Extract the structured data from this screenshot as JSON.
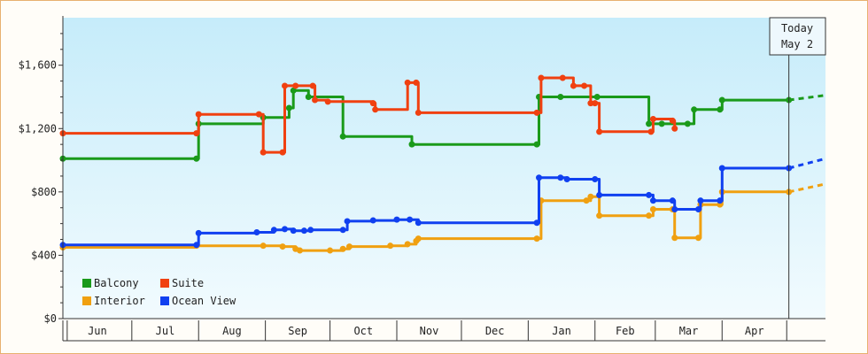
{
  "chart_data": {
    "type": "line",
    "title": "",
    "xlabel": "",
    "ylabel": "",
    "ylim": [
      0,
      1900
    ],
    "y_ticks": [
      0,
      400,
      800,
      1200,
      1600
    ],
    "y_tick_labels": [
      "$0",
      "$400",
      "$800",
      "$1,200",
      "$1,600"
    ],
    "x_range": [
      "2024-05-30",
      "2025-05-19"
    ],
    "months": [
      {
        "label": "Jun",
        "start": "2024-06-01"
      },
      {
        "label": "Jul",
        "start": "2024-07-01"
      },
      {
        "label": "Aug",
        "start": "2024-08-01"
      },
      {
        "label": "Sep",
        "start": "2024-09-01"
      },
      {
        "label": "Oct",
        "start": "2024-10-01"
      },
      {
        "label": "Nov",
        "start": "2024-11-01"
      },
      {
        "label": "Dec",
        "start": "2024-12-01"
      },
      {
        "label": "Jan",
        "start": "2025-01-01"
      },
      {
        "label": "Feb",
        "start": "2025-02-01"
      },
      {
        "label": "Mar",
        "start": "2025-03-01"
      },
      {
        "label": "Apr",
        "start": "2025-04-01"
      }
    ],
    "today": {
      "date": "2025-05-02",
      "line1": "Today",
      "line2": "May 2"
    },
    "grid": false,
    "step": true,
    "legend_position": "bottom-left",
    "series": [
      {
        "name": "Balcony",
        "color": "#1a9a1a",
        "points": [
          [
            "2024-05-30",
            1010
          ],
          [
            "2024-07-31",
            1010
          ],
          [
            "2024-08-01",
            1230
          ],
          [
            "2024-08-31",
            1270
          ],
          [
            "2024-09-12",
            1330
          ],
          [
            "2024-09-14",
            1440
          ],
          [
            "2024-09-21",
            1400
          ],
          [
            "2024-10-07",
            1150
          ],
          [
            "2024-11-08",
            1100
          ],
          [
            "2025-01-05",
            1100
          ],
          [
            "2025-01-06",
            1400
          ],
          [
            "2025-01-16",
            1400
          ],
          [
            "2025-02-02",
            1400
          ],
          [
            "2025-02-26",
            1230
          ],
          [
            "2025-03-04",
            1230
          ],
          [
            "2025-03-16",
            1230
          ],
          [
            "2025-03-19",
            1320
          ],
          [
            "2025-03-31",
            1320
          ],
          [
            "2025-04-01",
            1380
          ],
          [
            "2025-05-02",
            1380
          ]
        ],
        "forecast": [
          [
            "2025-05-02",
            1380
          ],
          [
            "2025-05-19",
            1410
          ]
        ]
      },
      {
        "name": "Suite",
        "color": "#f04010",
        "points": [
          [
            "2024-05-30",
            1170
          ],
          [
            "2024-07-31",
            1170
          ],
          [
            "2024-08-01",
            1290
          ],
          [
            "2024-08-29",
            1290
          ],
          [
            "2024-08-31",
            1050
          ],
          [
            "2024-09-09",
            1050
          ],
          [
            "2024-09-10",
            1470
          ],
          [
            "2024-09-15",
            1470
          ],
          [
            "2024-09-23",
            1470
          ],
          [
            "2024-09-24",
            1380
          ],
          [
            "2024-09-30",
            1370
          ],
          [
            "2024-10-21",
            1360
          ],
          [
            "2024-10-22",
            1320
          ],
          [
            "2024-11-06",
            1490
          ],
          [
            "2024-11-10",
            1490
          ],
          [
            "2024-11-11",
            1300
          ],
          [
            "2025-01-05",
            1300
          ],
          [
            "2025-01-07",
            1520
          ],
          [
            "2025-01-17",
            1520
          ],
          [
            "2025-01-22",
            1470
          ],
          [
            "2025-01-27",
            1470
          ],
          [
            "2025-01-30",
            1360
          ],
          [
            "2025-02-01",
            1360
          ],
          [
            "2025-02-03",
            1180
          ],
          [
            "2025-02-27",
            1180
          ],
          [
            "2025-02-28",
            1260
          ],
          [
            "2025-03-09",
            1250
          ],
          [
            "2025-03-10",
            1200
          ]
        ],
        "forecast": []
      },
      {
        "name": "Interior",
        "color": "#f0a010",
        "points": [
          [
            "2024-05-30",
            450
          ],
          [
            "2024-07-31",
            460
          ],
          [
            "2024-08-31",
            460
          ],
          [
            "2024-09-09",
            455
          ],
          [
            "2024-09-15",
            440
          ],
          [
            "2024-09-17",
            430
          ],
          [
            "2024-10-01",
            430
          ],
          [
            "2024-10-07",
            440
          ],
          [
            "2024-10-10",
            455
          ],
          [
            "2024-10-29",
            460
          ],
          [
            "2024-11-06",
            470
          ],
          [
            "2024-11-10",
            490
          ],
          [
            "2024-11-11",
            505
          ],
          [
            "2025-01-05",
            505
          ],
          [
            "2025-01-07",
            745
          ],
          [
            "2025-01-28",
            745
          ],
          [
            "2025-01-30",
            770
          ],
          [
            "2025-02-03",
            650
          ],
          [
            "2025-02-26",
            650
          ],
          [
            "2025-02-28",
            690
          ],
          [
            "2025-03-09",
            690
          ],
          [
            "2025-03-10",
            510
          ],
          [
            "2025-03-21",
            510
          ],
          [
            "2025-03-22",
            720
          ],
          [
            "2025-03-31",
            720
          ],
          [
            "2025-04-01",
            800
          ],
          [
            "2025-05-02",
            800
          ]
        ],
        "forecast": [
          [
            "2025-05-02",
            800
          ],
          [
            "2025-05-19",
            850
          ]
        ]
      },
      {
        "name": "Ocean View",
        "color": "#1040f0",
        "points": [
          [
            "2024-05-30",
            465
          ],
          [
            "2024-07-31",
            465
          ],
          [
            "2024-08-01",
            540
          ],
          [
            "2024-08-28",
            545
          ],
          [
            "2024-09-05",
            560
          ],
          [
            "2024-09-10",
            565
          ],
          [
            "2024-09-14",
            555
          ],
          [
            "2024-09-19",
            555
          ],
          [
            "2024-09-22",
            560
          ],
          [
            "2024-10-07",
            560
          ],
          [
            "2024-10-09",
            615
          ],
          [
            "2024-10-21",
            620
          ],
          [
            "2024-11-01",
            625
          ],
          [
            "2024-11-07",
            625
          ],
          [
            "2024-11-11",
            605
          ],
          [
            "2025-01-05",
            605
          ],
          [
            "2025-01-06",
            890
          ],
          [
            "2025-01-16",
            890
          ],
          [
            "2025-01-19",
            880
          ],
          [
            "2025-02-01",
            880
          ],
          [
            "2025-02-03",
            780
          ],
          [
            "2025-02-26",
            780
          ],
          [
            "2025-02-28",
            745
          ],
          [
            "2025-03-09",
            745
          ],
          [
            "2025-03-10",
            690
          ],
          [
            "2025-03-21",
            690
          ],
          [
            "2025-03-22",
            745
          ],
          [
            "2025-03-31",
            745
          ],
          [
            "2025-04-01",
            950
          ],
          [
            "2025-05-02",
            950
          ]
        ],
        "forecast": [
          [
            "2025-05-02",
            950
          ],
          [
            "2025-05-19",
            1010
          ]
        ]
      }
    ]
  }
}
